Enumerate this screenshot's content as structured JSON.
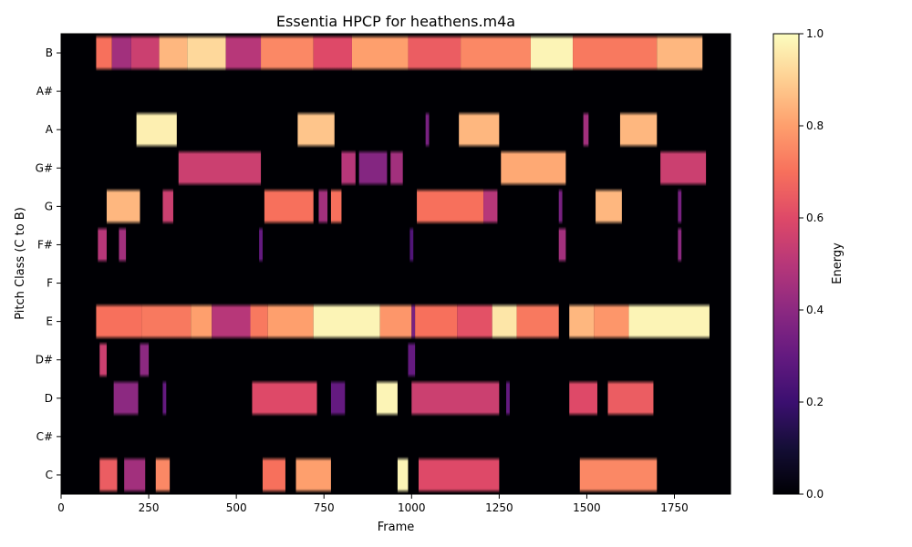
{
  "chart_data": {
    "type": "heatmap",
    "title": "Essentia HPCP for heathens.m4a",
    "xlabel": "Frame",
    "ylabel": "Pitch Class (C to B)",
    "xlim": [
      0,
      1910
    ],
    "xticks": [
      0,
      250,
      500,
      750,
      1000,
      1250,
      1500,
      1750
    ],
    "ytick_labels": [
      "C",
      "C#",
      "D",
      "D#",
      "E",
      "F",
      "F#",
      "G",
      "G#",
      "A",
      "A#",
      "B"
    ],
    "colormap": "magma",
    "colorbar": {
      "label": "Energy",
      "range": [
        0.0,
        1.0
      ],
      "ticks": [
        "0.0",
        "0.2",
        "0.4",
        "0.6",
        "0.8",
        "1.0"
      ]
    },
    "rows": [
      {
        "pitch": "C",
        "segments": [
          [
            110,
            160,
            0.65
          ],
          [
            180,
            240,
            0.45
          ],
          [
            270,
            310,
            0.75
          ],
          [
            575,
            640,
            0.7
          ],
          [
            670,
            770,
            0.8
          ],
          [
            960,
            990,
            0.98
          ],
          [
            1020,
            1250,
            0.6
          ],
          [
            1480,
            1700,
            0.75
          ]
        ]
      },
      {
        "pitch": "C#",
        "segments": []
      },
      {
        "pitch": "D",
        "segments": [
          [
            150,
            220,
            0.4
          ],
          [
            290,
            300,
            0.3
          ],
          [
            545,
            730,
            0.6
          ],
          [
            770,
            810,
            0.3
          ],
          [
            900,
            960,
            0.98
          ],
          [
            1000,
            1250,
            0.55
          ],
          [
            1270,
            1280,
            0.3
          ],
          [
            1450,
            1530,
            0.6
          ],
          [
            1560,
            1690,
            0.65
          ]
        ]
      },
      {
        "pitch": "D#",
        "segments": [
          [
            110,
            130,
            0.55
          ],
          [
            225,
            250,
            0.4
          ],
          [
            990,
            1010,
            0.3
          ]
        ]
      },
      {
        "pitch": "E",
        "segments": [
          [
            100,
            230,
            0.7
          ],
          [
            230,
            370,
            0.72
          ],
          [
            370,
            430,
            0.8
          ],
          [
            430,
            540,
            0.5
          ],
          [
            540,
            590,
            0.72
          ],
          [
            590,
            720,
            0.8
          ],
          [
            720,
            910,
            0.98
          ],
          [
            910,
            1000,
            0.78
          ],
          [
            1000,
            1010,
            0.35
          ],
          [
            1010,
            1130,
            0.7
          ],
          [
            1130,
            1230,
            0.62
          ],
          [
            1230,
            1300,
            0.95
          ],
          [
            1300,
            1420,
            0.72
          ],
          [
            1450,
            1520,
            0.85
          ],
          [
            1520,
            1620,
            0.78
          ],
          [
            1620,
            1850,
            0.98
          ]
        ]
      },
      {
        "pitch": "F",
        "segments": []
      },
      {
        "pitch": "F#",
        "segments": [
          [
            105,
            130,
            0.5
          ],
          [
            165,
            185,
            0.45
          ],
          [
            565,
            575,
            0.3
          ],
          [
            995,
            1005,
            0.25
          ],
          [
            1420,
            1440,
            0.45
          ],
          [
            1760,
            1770,
            0.4
          ]
        ]
      },
      {
        "pitch": "G",
        "segments": [
          [
            130,
            225,
            0.85
          ],
          [
            290,
            320,
            0.55
          ],
          [
            580,
            720,
            0.7
          ],
          [
            735,
            760,
            0.45
          ],
          [
            770,
            800,
            0.7
          ],
          [
            1015,
            1205,
            0.7
          ],
          [
            1205,
            1245,
            0.5
          ],
          [
            1420,
            1430,
            0.35
          ],
          [
            1525,
            1600,
            0.85
          ],
          [
            1760,
            1770,
            0.35
          ]
        ]
      },
      {
        "pitch": "G#",
        "segments": [
          [
            335,
            570,
            0.55
          ],
          [
            800,
            840,
            0.5
          ],
          [
            850,
            930,
            0.38
          ],
          [
            940,
            975,
            0.45
          ],
          [
            1255,
            1440,
            0.82
          ],
          [
            1710,
            1840,
            0.55
          ]
        ]
      },
      {
        "pitch": "A",
        "segments": [
          [
            215,
            330,
            0.97
          ],
          [
            675,
            780,
            0.88
          ],
          [
            1040,
            1050,
            0.35
          ],
          [
            1135,
            1250,
            0.85
          ],
          [
            1490,
            1505,
            0.45
          ],
          [
            1595,
            1700,
            0.85
          ]
        ]
      },
      {
        "pitch": "A#",
        "segments": []
      },
      {
        "pitch": "B",
        "segments": [
          [
            100,
            145,
            0.7
          ],
          [
            145,
            200,
            0.45
          ],
          [
            200,
            280,
            0.55
          ],
          [
            280,
            360,
            0.85
          ],
          [
            360,
            470,
            0.92
          ],
          [
            470,
            570,
            0.5
          ],
          [
            570,
            720,
            0.75
          ],
          [
            720,
            830,
            0.6
          ],
          [
            830,
            990,
            0.8
          ],
          [
            990,
            1140,
            0.65
          ],
          [
            1140,
            1340,
            0.75
          ],
          [
            1340,
            1460,
            0.98
          ],
          [
            1460,
            1700,
            0.72
          ],
          [
            1700,
            1830,
            0.85
          ]
        ]
      }
    ]
  }
}
